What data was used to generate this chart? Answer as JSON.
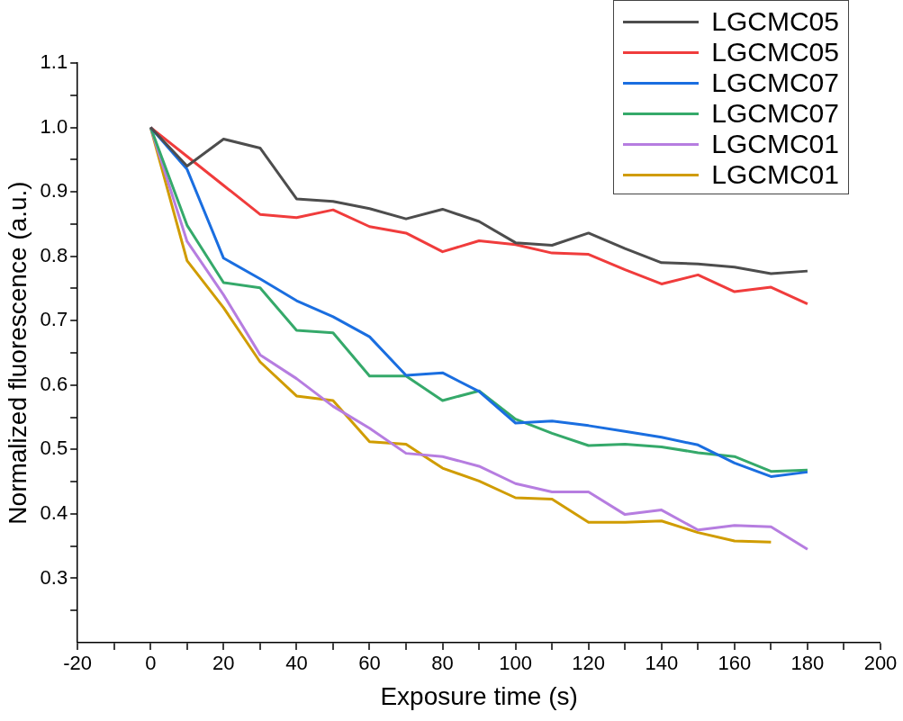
{
  "chart_data": {
    "type": "line",
    "xlabel": "Exposure time (s)",
    "ylabel": "Normalized fluorescence (a.u.)",
    "x": [
      0,
      10,
      20,
      30,
      40,
      50,
      60,
      70,
      80,
      90,
      100,
      110,
      120,
      130,
      140,
      150,
      160,
      170,
      180
    ],
    "series": [
      {
        "name": "LGCMC05",
        "color": "#4d4d4d",
        "values": [
          1.0,
          0.94,
          0.982,
          0.968,
          0.889,
          0.885,
          0.874,
          0.858,
          0.873,
          0.854,
          0.821,
          0.817,
          0.836,
          0.812,
          0.79,
          0.788,
          0.783,
          0.773,
          0.777
        ]
      },
      {
        "name": "LGCMC05",
        "color": "#f03c3c",
        "values": [
          1.0,
          0.955,
          0.91,
          0.865,
          0.86,
          0.872,
          0.846,
          0.836,
          0.807,
          0.824,
          0.818,
          0.805,
          0.803,
          0.779,
          0.757,
          0.771,
          0.745,
          0.752,
          0.726
        ]
      },
      {
        "name": "LGCMC07",
        "color": "#1a6ee0",
        "values": [
          1.0,
          0.935,
          0.797,
          0.765,
          0.731,
          0.706,
          0.675,
          0.615,
          0.619,
          0.59,
          0.541,
          0.544,
          0.537,
          0.528,
          0.519,
          0.507,
          0.479,
          0.458,
          0.465
        ]
      },
      {
        "name": "LGCMC07",
        "color": "#35a96a",
        "values": [
          1.0,
          0.848,
          0.759,
          0.751,
          0.685,
          0.681,
          0.614,
          0.614,
          0.576,
          0.591,
          0.547,
          0.525,
          0.506,
          0.508,
          0.504,
          0.495,
          0.489,
          0.466,
          0.468
        ]
      },
      {
        "name": "LGCMC01",
        "color": "#b67de0",
        "values": [
          1.0,
          0.823,
          0.74,
          0.647,
          0.61,
          0.567,
          0.533,
          0.494,
          0.489,
          0.474,
          0.447,
          0.434,
          0.434,
          0.399,
          0.406,
          0.375,
          0.382,
          0.38,
          0.345
        ]
      },
      {
        "name": "LGCMC01",
        "color": "#d09c00",
        "values": [
          1.0,
          0.793,
          0.72,
          0.636,
          0.583,
          0.576,
          0.512,
          0.508,
          0.471,
          0.451,
          0.425,
          0.423,
          0.387,
          0.387,
          0.389,
          0.371,
          0.358,
          0.356,
          null
        ]
      }
    ],
    "xlim": [
      -20,
      200
    ],
    "xticks": [
      -20,
      {
        "value": -10,
        "label": null
      },
      0,
      {
        "value": 10,
        "label": null
      },
      20,
      {
        "value": 30,
        "label": null
      },
      40,
      {
        "value": 50,
        "label": null
      },
      60,
      {
        "value": 70,
        "label": null
      },
      80,
      {
        "value": 90,
        "label": null
      },
      100,
      {
        "value": 110,
        "label": null
      },
      120,
      {
        "value": 130,
        "label": null
      },
      140,
      {
        "value": 150,
        "label": null
      },
      160,
      {
        "value": 170,
        "label": null
      },
      180,
      {
        "value": 190,
        "label": null
      },
      200
    ],
    "ylim": [
      0.2,
      1.1
    ],
    "yticks": [
      {
        "value": 0.25,
        "label": null
      },
      0.3,
      {
        "value": 0.35,
        "label": null
      },
      0.4,
      {
        "value": 0.45,
        "label": null
      },
      0.5,
      {
        "value": 0.55,
        "label": null
      },
      0.6,
      {
        "value": 0.65,
        "label": null
      },
      0.7,
      {
        "value": 0.75,
        "label": null
      },
      0.8,
      {
        "value": 0.85,
        "label": null
      },
      0.9,
      {
        "value": 0.95,
        "label": null
      },
      {
        "value": 1.0,
        "label": "1.0"
      },
      {
        "value": 1.05,
        "label": null
      },
      1.1
    ],
    "grid": false,
    "legend": "top right",
    "marker": "none",
    "line_style": "solid"
  }
}
